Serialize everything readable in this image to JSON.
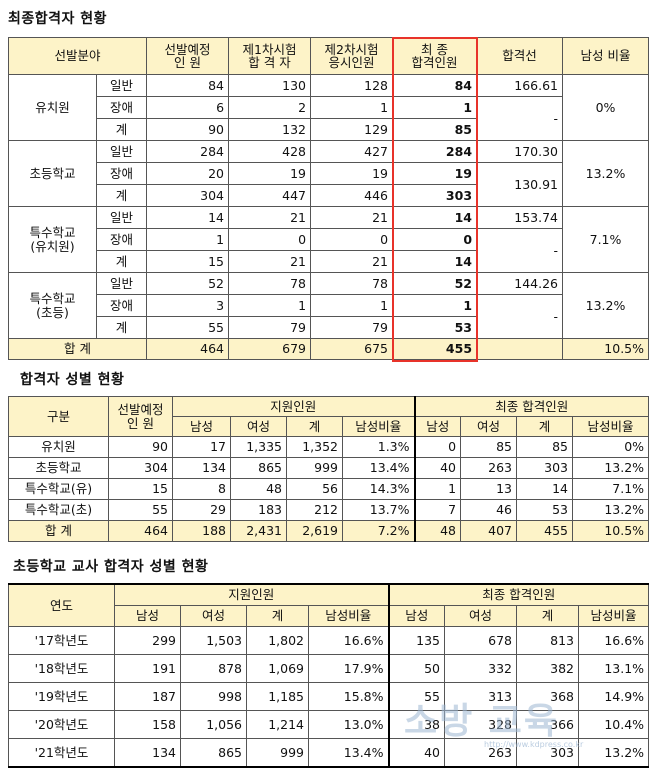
{
  "titles": {
    "t1": "최종합격자 현황",
    "t2": "합격자 성별 현황",
    "t3": "초등학교 교사 합격자 성별 현황"
  },
  "table1": {
    "headers": [
      "선발분야",
      "선발예정\n인    원",
      "제1차시험\n합 격 자",
      "제2차시험\n응시인원",
      "최    종\n합격인원",
      "합격선",
      "남성 비율"
    ],
    "groups": [
      {
        "name": "유치원",
        "ratio": "0%",
        "rows": [
          {
            "sub": "일반",
            "a": "84",
            "b": "130",
            "c": "128",
            "d": "84",
            "line": "166.61"
          },
          {
            "sub": "장애",
            "a": "6",
            "b": "2",
            "c": "1",
            "d": "1",
            "line": "-"
          },
          {
            "sub": "계",
            "a": "90",
            "b": "132",
            "c": "129",
            "d": "85",
            "line": ""
          }
        ]
      },
      {
        "name": "초등학교",
        "ratio": "13.2%",
        "rows": [
          {
            "sub": "일반",
            "a": "284",
            "b": "428",
            "c": "427",
            "d": "284",
            "line": "170.30"
          },
          {
            "sub": "장애",
            "a": "20",
            "b": "19",
            "c": "19",
            "d": "19",
            "line": "130.91"
          },
          {
            "sub": "계",
            "a": "304",
            "b": "447",
            "c": "446",
            "d": "303",
            "line": ""
          }
        ]
      },
      {
        "name": "특수학교\n(유치원)",
        "ratio": "7.1%",
        "rows": [
          {
            "sub": "일반",
            "a": "14",
            "b": "21",
            "c": "21",
            "d": "14",
            "line": "153.74"
          },
          {
            "sub": "장애",
            "a": "1",
            "b": "0",
            "c": "0",
            "d": "0",
            "line": "-"
          },
          {
            "sub": "계",
            "a": "15",
            "b": "21",
            "c": "21",
            "d": "14",
            "line": ""
          }
        ]
      },
      {
        "name": "특수학교\n(초등)",
        "ratio": "13.2%",
        "rows": [
          {
            "sub": "일반",
            "a": "52",
            "b": "78",
            "c": "78",
            "d": "52",
            "line": "144.26"
          },
          {
            "sub": "장애",
            "a": "3",
            "b": "1",
            "c": "1",
            "d": "1",
            "line": "-"
          },
          {
            "sub": "계",
            "a": "55",
            "b": "79",
            "c": "79",
            "d": "53",
            "line": ""
          }
        ]
      }
    ],
    "total": {
      "label": "합  계",
      "a": "464",
      "b": "679",
      "c": "675",
      "d": "455",
      "line": "",
      "ratio": "10.5%"
    }
  },
  "table2": {
    "h_gubun": "구분",
    "h_plan": "선발예정\n인    원",
    "h_apply": "지원인원",
    "h_final": "최종  합격인원",
    "sub": [
      "남성",
      "여성",
      "계",
      "남성비율"
    ],
    "rows": [
      {
        "name": "유치원",
        "plan": "90",
        "am": "17",
        "af": "1,335",
        "at": "1,352",
        "ar": "1.3%",
        "fm": "0",
        "ff": "85",
        "ft": "85",
        "fr": "0%"
      },
      {
        "name": "초등학교",
        "plan": "304",
        "am": "134",
        "af": "865",
        "at": "999",
        "ar": "13.4%",
        "fm": "40",
        "ff": "263",
        "ft": "303",
        "fr": "13.2%"
      },
      {
        "name": "특수학교(유)",
        "plan": "15",
        "am": "8",
        "af": "48",
        "at": "56",
        "ar": "14.3%",
        "fm": "1",
        "ff": "13",
        "ft": "14",
        "fr": "7.1%"
      },
      {
        "name": "특수학교(초)",
        "plan": "55",
        "am": "29",
        "af": "183",
        "at": "212",
        "ar": "13.7%",
        "fm": "7",
        "ff": "46",
        "ft": "53",
        "fr": "13.2%"
      }
    ],
    "total": {
      "name": "합  계",
      "plan": "464",
      "am": "188",
      "af": "2,431",
      "at": "2,619",
      "ar": "7.2%",
      "fm": "48",
      "ff": "407",
      "ft": "455",
      "fr": "10.5%"
    }
  },
  "table3": {
    "h_year": "연도",
    "h_apply": "지원인원",
    "h_final": "최종  합격인원",
    "sub": [
      "남성",
      "여성",
      "계",
      "남성비율"
    ],
    "rows": [
      {
        "year": "'17학년도",
        "am": "299",
        "af": "1,503",
        "at": "1,802",
        "ar": "16.6%",
        "fm": "135",
        "ff": "678",
        "ft": "813",
        "fr": "16.6%"
      },
      {
        "year": "'18학년도",
        "am": "191",
        "af": "878",
        "at": "1,069",
        "ar": "17.9%",
        "fm": "50",
        "ff": "332",
        "ft": "382",
        "fr": "13.1%"
      },
      {
        "year": "'19학년도",
        "am": "187",
        "af": "998",
        "at": "1,185",
        "ar": "15.8%",
        "fm": "55",
        "ff": "313",
        "ft": "368",
        "fr": "14.9%"
      },
      {
        "year": "'20학년도",
        "am": "158",
        "af": "1,056",
        "at": "1,214",
        "ar": "13.0%",
        "fm": "38",
        "ff": "328",
        "ft": "366",
        "fr": "10.4%"
      },
      {
        "year": "'21학년도",
        "am": "134",
        "af": "865",
        "at": "999",
        "ar": "13.4%",
        "fm": "40",
        "ff": "263",
        "ft": "303",
        "fr": "13.2%"
      }
    ]
  }
}
